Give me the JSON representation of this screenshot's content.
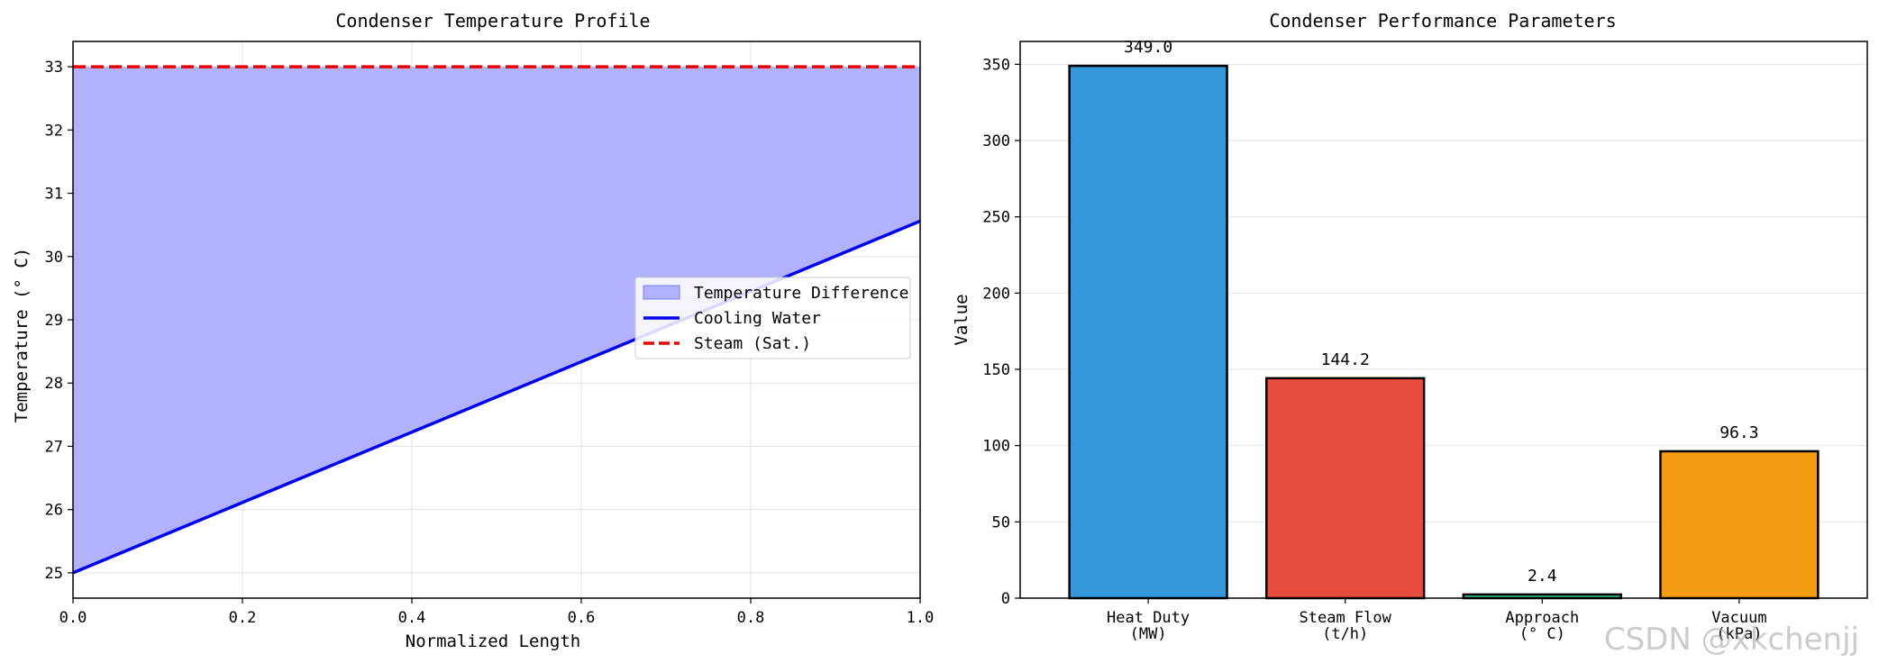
{
  "watermark": "CSDN @xkchenjj",
  "chart_data": [
    {
      "type": "line",
      "title": "Condenser Temperature Profile",
      "xlabel": "Normalized Length",
      "ylabel": "Temperature (° C)",
      "xlim": [
        0,
        1
      ],
      "ylim": [
        24.6,
        33.4
      ],
      "xticks": [
        0.0,
        0.2,
        0.4,
        0.6,
        0.8,
        1.0
      ],
      "xtick_labels": [
        "0.0",
        "0.2",
        "0.4",
        "0.6",
        "0.8",
        "1.0"
      ],
      "yticks": [
        25,
        26,
        27,
        28,
        29,
        30,
        31,
        32,
        33
      ],
      "ytick_labels": [
        "25",
        "26",
        "27",
        "28",
        "29",
        "30",
        "31",
        "32",
        "33"
      ],
      "grid": true,
      "legend_position": "center-right",
      "series": [
        {
          "name": "Cooling Water",
          "x": [
            0,
            1
          ],
          "y": [
            25.0,
            30.56
          ],
          "color": "#0000ee",
          "style": "solid"
        },
        {
          "name": "Steam (Sat.)",
          "x": [
            0,
            1
          ],
          "y": [
            33.0,
            33.0
          ],
          "color": "#ee0000",
          "style": "dashed"
        }
      ],
      "fill": {
        "name": "Temperature Difference",
        "between": [
          "Cooling Water",
          "Steam (Sat.)"
        ],
        "color": "#b2b2fc"
      }
    },
    {
      "type": "bar",
      "title": "Condenser Performance Parameters",
      "xlabel": "",
      "ylabel": "Value",
      "ylim": [
        0,
        365
      ],
      "yticks": [
        0,
        50,
        100,
        150,
        200,
        250,
        300,
        350
      ],
      "ytick_labels": [
        "0",
        "50",
        "100",
        "150",
        "200",
        "250",
        "300",
        "350"
      ],
      "grid": true,
      "categories": [
        [
          "Heat Duty",
          "(MW)"
        ],
        [
          "Steam Flow",
          "(t/h)"
        ],
        [
          "Approach",
          "(° C)"
        ],
        [
          "Vacuum",
          "(kPa)"
        ]
      ],
      "values": [
        349.0,
        144.2,
        2.4,
        96.3
      ],
      "value_labels": [
        "349.0",
        "144.2",
        "2.4",
        "96.3"
      ],
      "colors": [
        "#3498db",
        "#e74c3c",
        "#2ecc71",
        "#f39c12"
      ]
    }
  ]
}
